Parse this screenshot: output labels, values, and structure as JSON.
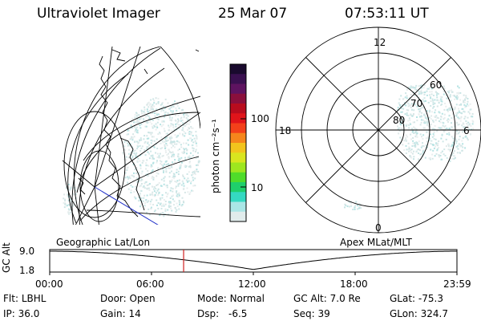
{
  "header": {
    "instrument": "Ultraviolet Imager",
    "date": "25 Mar 07",
    "time": "07:53:11 UT"
  },
  "colorbar": {
    "unit_label": "photon cm⁻²s⁻¹",
    "ticks": [
      "100",
      "10"
    ],
    "colors": [
      "#1a0a2e",
      "#3a1050",
      "#5e1360",
      "#8a0f3c",
      "#b80c1e",
      "#e0141a",
      "#f3401a",
      "#f6861c",
      "#f2c41d",
      "#d9e51f",
      "#9ee61f",
      "#4fdc2a",
      "#1fcf6b",
      "#35d9c2",
      "#a9e6e6",
      "#e1ecec"
    ]
  },
  "panels": {
    "geo_label": "Geographic Lat/Lon",
    "apex_label": "Apex  MLat/MLT",
    "polar": {
      "mlt_labels": [
        "12",
        "18",
        "6",
        "0"
      ],
      "lat_labels": [
        "60",
        "70",
        "80"
      ]
    }
  },
  "timeline": {
    "y_axis_label": "GC Alt",
    "y_ticks": [
      "9.0",
      "1.8"
    ],
    "x_ticks": [
      "00:00",
      "06:00",
      "12:00",
      "18:00",
      "23:59"
    ],
    "current_time_hours": 7.886,
    "marker_color": "#d02020"
  },
  "info": {
    "filter": {
      "label": "Flt:",
      "value": "LBHL"
    },
    "ip": {
      "label": "IP:",
      "value": "36.0"
    },
    "door": {
      "label": "Door:",
      "value": "Open"
    },
    "gain": {
      "label": "Gain:",
      "value": "14"
    },
    "mode": {
      "label": "Mode:",
      "value": "Normal"
    },
    "dsp": {
      "label": "Dsp:",
      "value": "-6.5"
    },
    "gc_alt": {
      "label": "GC Alt:",
      "value": "7.0 Re"
    },
    "seq": {
      "label": "Seq:",
      "value": "39"
    },
    "glat": {
      "label": "GLat:",
      "value": "-75.3"
    },
    "glon": {
      "label": "GLon:",
      "value": "324.7"
    }
  }
}
